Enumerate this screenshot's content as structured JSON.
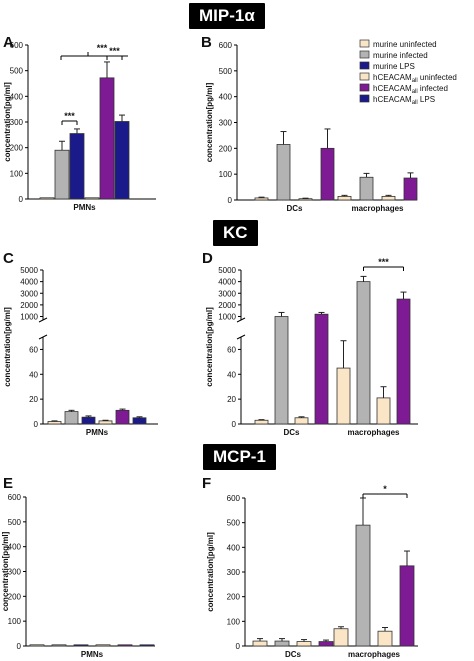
{
  "sections": [
    {
      "id": "mip",
      "label": "MIP-1α"
    },
    {
      "id": "kc",
      "label": "KC"
    },
    {
      "id": "mcp",
      "label": "MCP-1"
    }
  ],
  "legend": [
    {
      "key": "mu",
      "label": "murine uninfected",
      "color": "#fae5c6"
    },
    {
      "key": "mi",
      "label": "murine infected",
      "color": "#b3b3b3"
    },
    {
      "key": "ml",
      "label": "murine LPS",
      "color": "#1a1a8a"
    },
    {
      "key": "hu",
      "label": "hCEACAM",
      "sub": "all",
      "tail": " uninfected",
      "color": "#fae5c6"
    },
    {
      "key": "hi",
      "label": "hCEACAM",
      "sub": "all",
      "tail": " infected",
      "color": "#7d1a94"
    },
    {
      "key": "hl",
      "label": "hCEACAM",
      "sub": "all",
      "tail": " LPS",
      "color": "#1a1a8a"
    }
  ],
  "chart_data": [
    {
      "panel": "A",
      "type": "bar",
      "section": "MIP-1α",
      "ylabel": "concentration[pg/ml]",
      "ylim": [
        0,
        600
      ],
      "yticks": [
        0,
        100,
        200,
        300,
        400,
        500,
        600
      ],
      "groups": [
        {
          "label": "PMNs",
          "bars": [
            {
              "key": "mu",
              "value": 0,
              "err": 0
            },
            {
              "key": "mi",
              "value": 190,
              "err": 35
            },
            {
              "key": "ml",
              "value": 255,
              "err": 18
            },
            {
              "key": "hu",
              "value": 2,
              "err": 0
            },
            {
              "key": "hi",
              "value": 472,
              "err": 62
            },
            {
              "key": "hl",
              "value": 302,
              "err": 25
            }
          ]
        }
      ],
      "annotations": [
        "***",
        "***",
        "***"
      ]
    },
    {
      "panel": "B",
      "type": "bar",
      "section": "MIP-1α",
      "ylabel": "concentration[pg/ml]",
      "ylim": [
        0,
        600
      ],
      "yticks": [
        0,
        100,
        200,
        300,
        400,
        500,
        600
      ],
      "groups": [
        {
          "label": "DCs",
          "bars": [
            {
              "key": "mu",
              "value": 8,
              "err": 3
            },
            {
              "key": "mi",
              "value": 215,
              "err": 50
            },
            {
              "key": "hu",
              "value": 5,
              "err": 2
            },
            {
              "key": "hi",
              "value": 200,
              "err": 75
            }
          ]
        },
        {
          "label": "macrophages",
          "bars": [
            {
              "key": "mu",
              "value": 14,
              "err": 4
            },
            {
              "key": "mi",
              "value": 88,
              "err": 15
            },
            {
              "key": "hu",
              "value": 14,
              "err": 4
            },
            {
              "key": "hi",
              "value": 85,
              "err": 20
            }
          ]
        }
      ]
    },
    {
      "panel": "C",
      "type": "bar",
      "section": "KC",
      "ylabel": "concentration[pg/ml]",
      "broken_axis": true,
      "ylim_lower": [
        0,
        70
      ],
      "yticks_lower": [
        0,
        20,
        40,
        60
      ],
      "ylim_upper": [
        700,
        5000
      ],
      "yticks_upper": [
        1000,
        2000,
        3000,
        4000,
        5000
      ],
      "groups": [
        {
          "label": "PMNs",
          "bars": [
            {
              "key": "mu",
              "value": 2,
              "err": 0.5
            },
            {
              "key": "mi",
              "value": 10,
              "err": 1
            },
            {
              "key": "ml",
              "value": 5.5,
              "err": 1
            },
            {
              "key": "hu",
              "value": 2.5,
              "err": 0.5
            },
            {
              "key": "hi",
              "value": 11,
              "err": 1
            },
            {
              "key": "hl",
              "value": 5,
              "err": 0.8
            }
          ]
        }
      ]
    },
    {
      "panel": "D",
      "type": "bar",
      "section": "KC",
      "ylabel": "concentration[pg/ml]",
      "broken_axis": true,
      "ylim_lower": [
        0,
        70
      ],
      "yticks_lower": [
        0,
        20,
        40,
        60
      ],
      "ylim_upper": [
        700,
        5000
      ],
      "yticks_upper": [
        1000,
        2000,
        3000,
        4000,
        5000
      ],
      "groups": [
        {
          "label": "DCs",
          "bars": [
            {
              "key": "mu",
              "value": 3,
              "err": 0.5
            },
            {
              "key": "mi",
              "value": 1000,
              "err": 350
            },
            {
              "key": "hu",
              "value": 5,
              "err": 0.8
            },
            {
              "key": "hi",
              "value": 1200,
              "err": 150
            }
          ]
        },
        {
          "label": "macrophages",
          "bars": [
            {
              "key": "mu",
              "value": 45,
              "err": 22
            },
            {
              "key": "mi",
              "value": 4000,
              "err": 450
            },
            {
              "key": "hu",
              "value": 21,
              "err": 9
            },
            {
              "key": "hi",
              "value": 2500,
              "err": 600
            }
          ]
        }
      ],
      "annotations": [
        "***"
      ]
    },
    {
      "panel": "E",
      "type": "bar",
      "section": "MCP-1",
      "ylabel": "concentration[pg/ml]",
      "ylim": [
        0,
        600
      ],
      "yticks": [
        0,
        100,
        200,
        300,
        400,
        500,
        600
      ],
      "groups": [
        {
          "label": "PMNs",
          "bars": [
            {
              "key": "mu",
              "value": 2,
              "err": 0
            },
            {
              "key": "mi",
              "value": 2,
              "err": 0
            },
            {
              "key": "ml",
              "value": 2,
              "err": 0
            },
            {
              "key": "hu",
              "value": 2,
              "err": 0
            },
            {
              "key": "hi",
              "value": 2,
              "err": 0
            },
            {
              "key": "hl",
              "value": 2,
              "err": 0
            }
          ]
        }
      ]
    },
    {
      "panel": "F",
      "type": "bar",
      "section": "MCP-1",
      "ylabel": "concentration[pg/ml]",
      "ylim": [
        0,
        600
      ],
      "yticks": [
        0,
        100,
        200,
        300,
        400,
        500,
        600
      ],
      "groups": [
        {
          "label": "DCs",
          "bars": [
            {
              "key": "mu",
              "value": 20,
              "err": 10
            },
            {
              "key": "mi",
              "value": 20,
              "err": 10
            },
            {
              "key": "hu",
              "value": 18,
              "err": 8
            },
            {
              "key": "hi",
              "value": 18,
              "err": 6
            }
          ]
        },
        {
          "label": "macrophages",
          "bars": [
            {
              "key": "mu",
              "value": 70,
              "err": 8
            },
            {
              "key": "mi",
              "value": 490,
              "err": 110
            },
            {
              "key": "hu",
              "value": 60,
              "err": 15
            },
            {
              "key": "hi",
              "value": 325,
              "err": 60
            }
          ]
        }
      ],
      "annotations": [
        "*"
      ]
    }
  ]
}
